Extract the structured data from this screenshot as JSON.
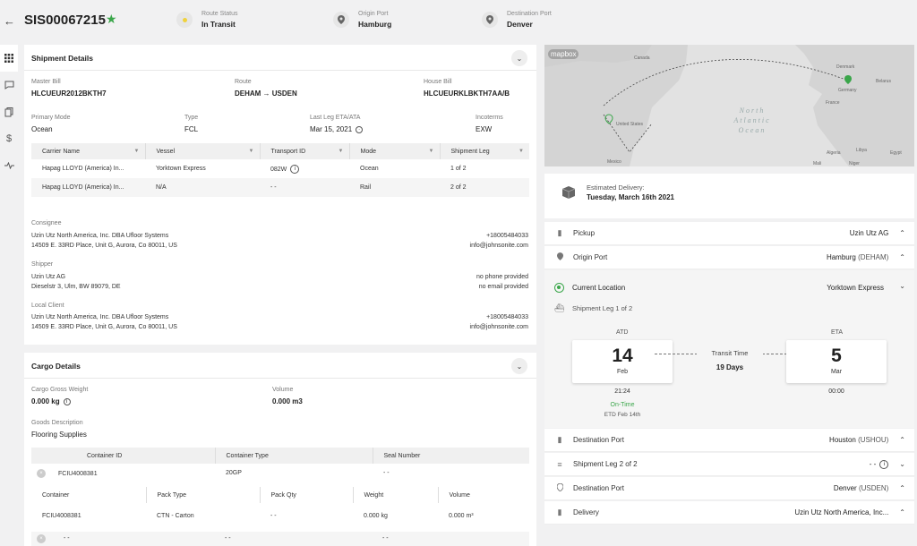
{
  "header": {
    "shipment_id": "SIS00067215",
    "route_status_label": "Route Status",
    "route_status": "In Transit",
    "origin_port_label": "Origin Port",
    "origin_port": "Hamburg",
    "destination_port_label": "Destination Port",
    "destination_port": "Denver"
  },
  "shipment_details": {
    "title": "Shipment Details",
    "master_bill_label": "Master Bill",
    "master_bill": "HLCUEUR2012BKTH7",
    "route_label": "Route",
    "route": "DEHAM → USDEN",
    "house_bill_label": "House Bill",
    "house_bill": "HLCUEURKLBKTH7AA/B",
    "primary_mode_label": "Primary Mode",
    "primary_mode": "Ocean",
    "type_label": "Type",
    "type": "FCL",
    "last_leg_label": "Last Leg ETA/ATA",
    "last_leg": "Mar 15, 2021",
    "incoterms_label": "Incoterms",
    "incoterms": "EXW",
    "table": {
      "headers": [
        "Carrier Name",
        "Vessel",
        "Transport ID",
        "Mode",
        "Shipment Leg"
      ],
      "rows": [
        [
          "Hapag LLOYD (America) In...",
          "Yorktown Express",
          "082W",
          "Ocean",
          "1 of 2"
        ],
        [
          "Hapag LLOYD (America) In...",
          "N/A",
          "- -",
          "Rail",
          "2 of 2"
        ]
      ]
    },
    "consignee_label": "Consignee",
    "consignee_name": "Uzin Utz North America, Inc. DBA Ufloor Systems",
    "consignee_addr": "14509 E. 33RD Place, Unit G, Aurora, Co 80011, US",
    "consignee_phone": "+18005484033",
    "consignee_email": "info@johnsonite.com",
    "shipper_label": "Shipper",
    "shipper_name": "Uzin Utz AG",
    "shipper_addr": "Dieselstr 3, Ulm, BW 89079, DE",
    "shipper_phone": "no phone provided",
    "shipper_email": "no email provided",
    "local_client_label": "Local Client",
    "local_client_name": "Uzin Utz North America, Inc. DBA Ufloor Systems",
    "local_client_addr": "14509 E. 33RD Place, Unit G, Aurora, Co 80011, US",
    "local_client_phone": "+18005484033",
    "local_client_email": "info@johnsonite.com"
  },
  "cargo_details": {
    "title": "Cargo Details",
    "gross_weight_label": "Cargo Gross Weight",
    "gross_weight": "0.000 kg",
    "volume_label": "Volume",
    "volume": "0.000 m3",
    "goods_desc_label": "Goods Description",
    "goods_desc": "Flooring Supplies",
    "container_headers": [
      "Container ID",
      "Container Type",
      "Seal Number"
    ],
    "container_row": [
      "FCIU4008381",
      "20GP",
      "- -"
    ],
    "pack_headers": [
      "Container",
      "Pack Type",
      "Pack Qty",
      "Weight",
      "Volume"
    ],
    "pack_row": [
      "FCIU4008381",
      "CTN - Carton",
      "- -",
      "0.000 kg",
      "0.000 m³"
    ],
    "last_row": [
      "- -",
      "- -",
      "- -"
    ]
  },
  "map": {
    "brand": "mapbox",
    "labels": [
      "United States",
      "Mexico",
      "Canada",
      "Denmark",
      "Germany",
      "France",
      "Belarus",
      "Algeria",
      "Libya",
      "Egypt",
      "Mali",
      "Niger"
    ],
    "ocean_lines": [
      "North",
      "Atlantic",
      "Ocean"
    ]
  },
  "tracking": {
    "estimated_delivery_label": "Estimated Delivery:",
    "estimated_delivery": "Tuesday, March 16th 2021",
    "pickup_label": "Pickup",
    "pickup": "Uzin Utz AG",
    "origin_port_label": "Origin Port",
    "origin_port": "Hamburg",
    "origin_port_code": "(DEHAM)",
    "current_location_label": "Current Location",
    "current_location": "Yorktown Express",
    "leg1_label": "Shipment Leg 1 of 2",
    "atd_label": "ATD",
    "atd_day": "14",
    "atd_month": "Feb",
    "atd_time": "21:24",
    "atd_status": "On-Time",
    "atd_etd": "ETD Feb 14th",
    "transit_label": "Transit Time",
    "transit_days": "19 Days",
    "eta_label": "ETA",
    "eta_day": "5",
    "eta_month": "Mar",
    "eta_time": "00:00",
    "dest_port1_label": "Destination Port",
    "dest_port1": "Houston",
    "dest_port1_code": "(USHOU)",
    "leg2_label": "Shipment Leg 2 of 2",
    "leg2_value": "- -",
    "dest_port2_label": "Destination Port",
    "dest_port2": "Denver",
    "dest_port2_code": "(USDEN)",
    "delivery_label": "Delivery",
    "delivery": "Uzin Utz North America, Inc..."
  },
  "colors": {
    "accent_green": "#3aa64a",
    "route_status_dot": "#f0d23c"
  }
}
